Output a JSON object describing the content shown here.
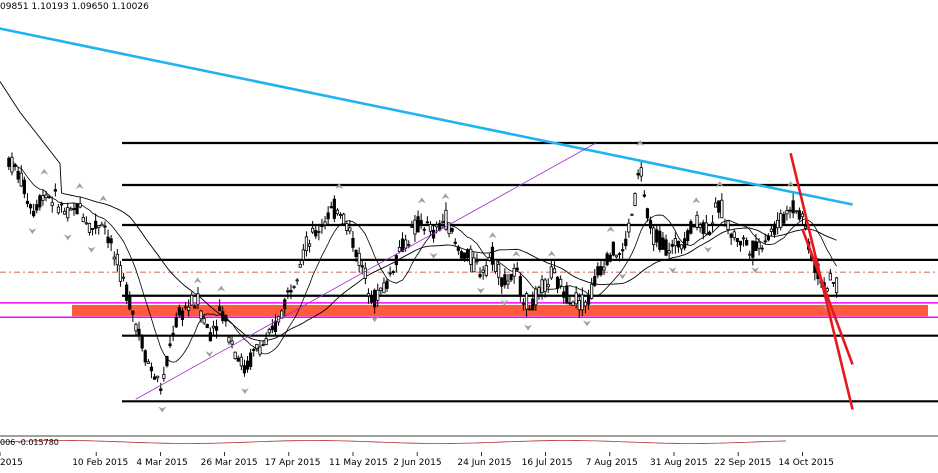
{
  "header": {
    "ohlc": "09851 1.10193 1.09650 1.10026"
  },
  "indicator": {
    "label": "006 -0.015780"
  },
  "colors": {
    "candles": "#000000",
    "ma_slow": "#000000",
    "ma_fast": "#000000",
    "level": "#000000",
    "zone": "#ff5a3c",
    "magenta": "#ff00ff",
    "trend_blue": "#1fb4ef",
    "trend_red": "#e8171d",
    "channel": "#9b30c8",
    "dashed": "#c0392b",
    "fractal": "#a0a0a0",
    "osc": "#b03030"
  },
  "chart_data": {
    "type": "candlestick",
    "title": "",
    "xlabel": "",
    "ylabel": "",
    "x_ticks": [
      "2015",
      "10 Feb 2015",
      "4 Mar 2015",
      "26 Mar 2015",
      "17 Apr 2015",
      "11 May 2015",
      "2 Jun 2015",
      "24 Jun 2015",
      "16 Jul 2015",
      "7 Aug 2015",
      "31 Aug 2015",
      "22 Sep 2015",
      "14 Oct 2015"
    ],
    "ylim": [
      1.03,
      1.23
    ],
    "horizontal_levels": [
      1.17,
      1.1495,
      1.13,
      1.113,
      1.0955,
      1.076,
      1.044
    ],
    "zone": [
      1.0855,
      1.091
    ],
    "magenta_lines": [
      1.092,
      1.085
    ],
    "dashed_level": 1.107,
    "trendlines": [
      {
        "name": "blue",
        "from": [
          "2015-01-15",
          1.227
        ],
        "to": [
          "2015-11-04",
          1.14
        ]
      },
      {
        "name": "red-1",
        "from": [
          "2015-10-14",
          1.165
        ],
        "to": [
          "2015-11-04",
          1.04
        ]
      },
      {
        "name": "red-2",
        "from": [
          "2015-10-18",
          1.128
        ],
        "to": [
          "2015-11-04",
          1.062
        ]
      },
      {
        "name": "channel",
        "from": [
          "2015-03-06",
          1.045
        ],
        "to": [
          "2015-08-09",
          1.17
        ]
      }
    ],
    "price_path": [
      [
        "2015-01-22",
        1.162
      ],
      [
        "2015-01-26",
        1.153
      ],
      [
        "2015-01-30",
        1.137
      ],
      [
        "2015-02-03",
        1.146
      ],
      [
        "2015-02-07",
        1.142
      ],
      [
        "2015-02-11",
        1.134
      ],
      [
        "2015-02-15",
        1.139
      ],
      [
        "2015-02-19",
        1.128
      ],
      [
        "2015-02-23",
        1.133
      ],
      [
        "2015-02-27",
        1.113
      ],
      [
        "2015-03-03",
        1.098
      ],
      [
        "2015-03-07",
        1.078
      ],
      [
        "2015-03-11",
        1.06
      ],
      [
        "2015-03-15",
        1.05
      ],
      [
        "2015-03-19",
        1.081
      ],
      [
        "2015-03-23",
        1.09
      ],
      [
        "2015-03-27",
        1.093
      ],
      [
        "2015-03-31",
        1.077
      ],
      [
        "2015-04-04",
        1.089
      ],
      [
        "2015-04-08",
        1.072
      ],
      [
        "2015-04-12",
        1.059
      ],
      [
        "2015-04-16",
        1.07
      ],
      [
        "2015-04-20",
        1.073
      ],
      [
        "2015-04-24",
        1.086
      ],
      [
        "2015-04-28",
        1.102
      ],
      [
        "2015-05-02",
        1.118
      ],
      [
        "2015-05-06",
        1.126
      ],
      [
        "2015-05-10",
        1.135
      ],
      [
        "2015-05-14",
        1.139
      ],
      [
        "2015-05-18",
        1.125
      ],
      [
        "2015-05-22",
        1.108
      ],
      [
        "2015-05-26",
        1.094
      ],
      [
        "2015-05-30",
        1.101
      ],
      [
        "2015-06-03",
        1.117
      ],
      [
        "2015-06-07",
        1.125
      ],
      [
        "2015-06-11",
        1.132
      ],
      [
        "2015-06-15",
        1.125
      ],
      [
        "2015-06-19",
        1.134
      ],
      [
        "2015-06-23",
        1.118
      ],
      [
        "2015-06-27",
        1.114
      ],
      [
        "2015-07-01",
        1.108
      ],
      [
        "2015-07-05",
        1.115
      ],
      [
        "2015-07-09",
        1.102
      ],
      [
        "2015-07-13",
        1.106
      ],
      [
        "2015-07-17",
        1.09
      ],
      [
        "2015-07-21",
        1.096
      ],
      [
        "2015-07-25",
        1.106
      ],
      [
        "2015-07-29",
        1.098
      ],
      [
        "2015-08-02",
        1.094
      ],
      [
        "2015-08-06",
        1.092
      ],
      [
        "2015-08-10",
        1.108
      ],
      [
        "2015-08-14",
        1.118
      ],
      [
        "2015-08-18",
        1.115
      ],
      [
        "2015-08-22",
        1.14
      ],
      [
        "2015-08-24",
        1.16
      ],
      [
        "2015-08-27",
        1.128
      ],
      [
        "2015-08-31",
        1.122
      ],
      [
        "2015-09-04",
        1.118
      ],
      [
        "2015-09-08",
        1.124
      ],
      [
        "2015-09-12",
        1.132
      ],
      [
        "2015-09-16",
        1.128
      ],
      [
        "2015-09-20",
        1.14
      ],
      [
        "2015-09-24",
        1.125
      ],
      [
        "2015-09-28",
        1.122
      ],
      [
        "2015-10-02",
        1.118
      ],
      [
        "2015-10-06",
        1.125
      ],
      [
        "2015-10-10",
        1.13
      ],
      [
        "2015-10-14",
        1.14
      ],
      [
        "2015-10-18",
        1.135
      ],
      [
        "2015-10-22",
        1.11
      ],
      [
        "2015-10-26",
        1.1
      ],
      [
        "2015-10-30",
        1.102
      ]
    ]
  }
}
